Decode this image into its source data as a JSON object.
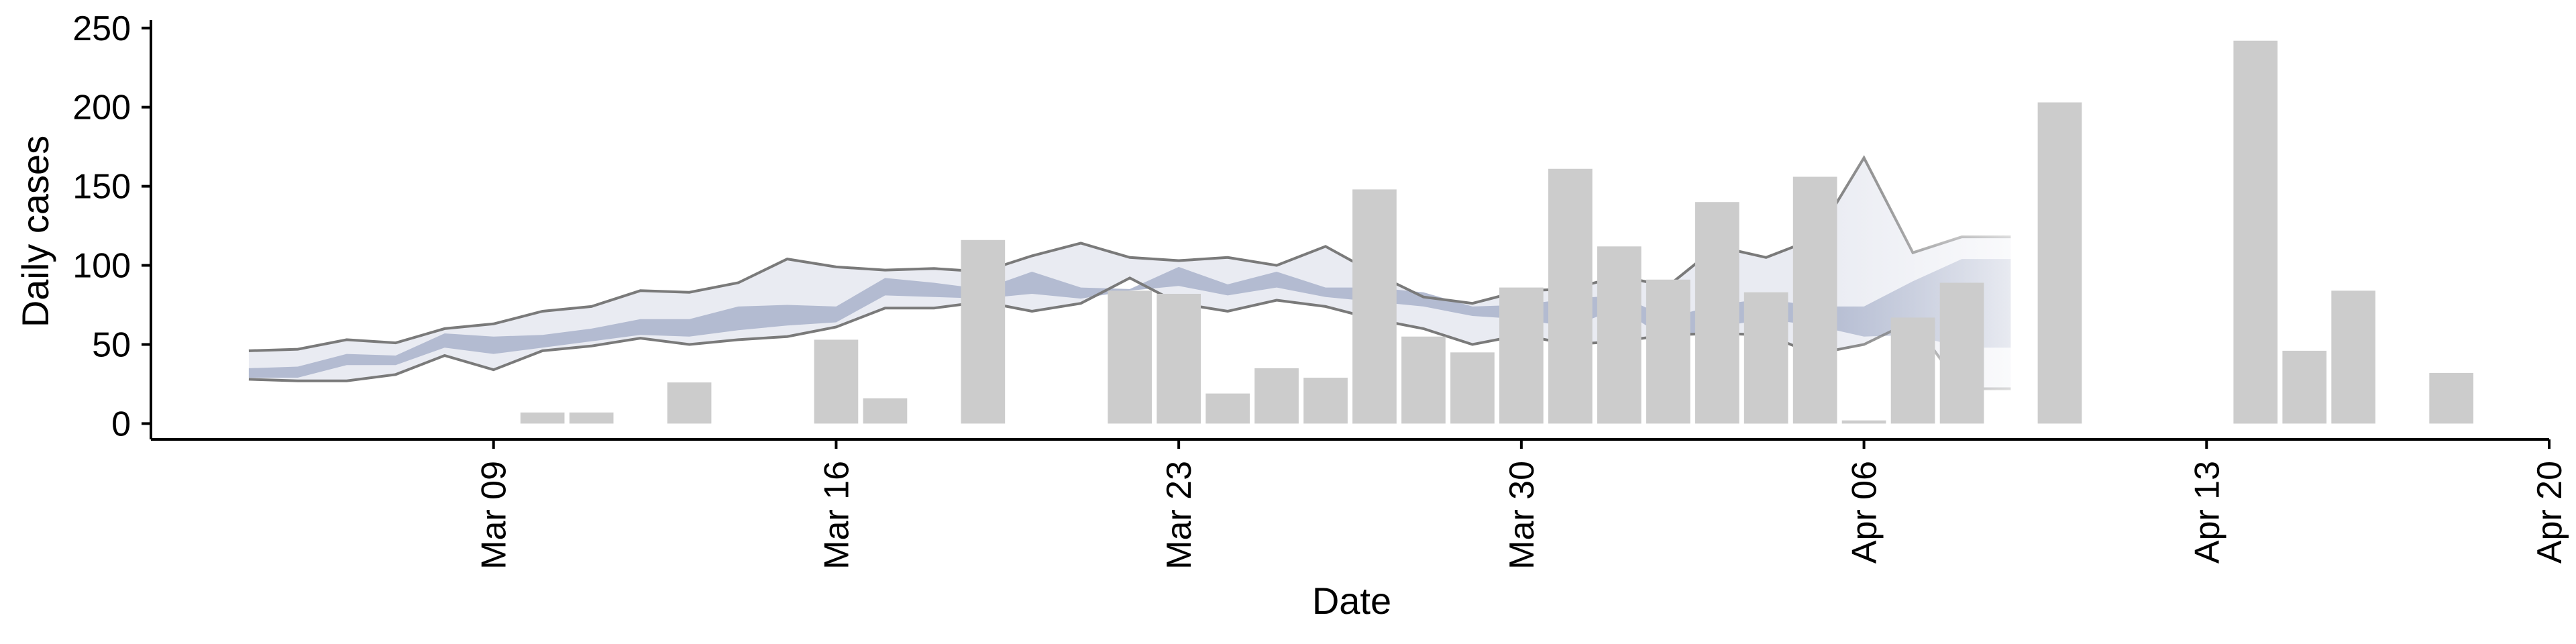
{
  "chart_data": {
    "type": "bar",
    "xlabel": "Date",
    "ylabel": "Daily cases",
    "x_tick_labels": [
      "Mar 09",
      "Mar 16",
      "Mar 23",
      "Mar 30",
      "Apr 06",
      "Apr 13",
      "Apr 20"
    ],
    "x_ticks": [
      "2020-03-09",
      "2020-03-16",
      "2020-03-23",
      "2020-03-30",
      "2020-04-06",
      "2020-04-13",
      "2020-04-20"
    ],
    "y_ticks": [
      0,
      50,
      100,
      150,
      200,
      250
    ],
    "ylim": [
      -10,
      255
    ],
    "xlim": [
      "2020-03-02",
      "2020-04-20"
    ],
    "grid": false,
    "colors": {
      "bars": "#cccccc",
      "median_band": "#b3bbd1",
      "outer_band": "#e9ebf2",
      "bound_lines": "#7a7a7a",
      "axis": "#000000"
    },
    "bars": [
      {
        "date": "2020-03-10",
        "value": 7
      },
      {
        "date": "2020-03-11",
        "value": 7
      },
      {
        "date": "2020-03-13",
        "value": 26
      },
      {
        "date": "2020-03-16",
        "value": 53
      },
      {
        "date": "2020-03-17",
        "value": 16
      },
      {
        "date": "2020-03-19",
        "value": 116
      },
      {
        "date": "2020-03-22",
        "value": 84
      },
      {
        "date": "2020-03-23",
        "value": 82
      },
      {
        "date": "2020-03-24",
        "value": 19
      },
      {
        "date": "2020-03-25",
        "value": 35
      },
      {
        "date": "2020-03-26",
        "value": 29
      },
      {
        "date": "2020-03-27",
        "value": 148
      },
      {
        "date": "2020-03-28",
        "value": 55
      },
      {
        "date": "2020-03-29",
        "value": 45
      },
      {
        "date": "2020-03-30",
        "value": 86
      },
      {
        "date": "2020-03-31",
        "value": 161
      },
      {
        "date": "2020-04-01",
        "value": 112
      },
      {
        "date": "2020-04-02",
        "value": 91
      },
      {
        "date": "2020-04-03",
        "value": 140
      },
      {
        "date": "2020-04-04",
        "value": 83
      },
      {
        "date": "2020-04-05",
        "value": 156
      },
      {
        "date": "2020-04-06",
        "value": 2
      },
      {
        "date": "2020-04-07",
        "value": 67
      },
      {
        "date": "2020-04-08",
        "value": 89
      },
      {
        "date": "2020-04-10",
        "value": 203
      },
      {
        "date": "2020-04-14",
        "value": 242
      },
      {
        "date": "2020-04-15",
        "value": 46
      },
      {
        "date": "2020-04-16",
        "value": 84
      },
      {
        "date": "2020-04-18",
        "value": 32
      }
    ],
    "forecast": {
      "dates": [
        "2020-03-04",
        "2020-03-05",
        "2020-03-06",
        "2020-03-07",
        "2020-03-08",
        "2020-03-09",
        "2020-03-10",
        "2020-03-11",
        "2020-03-12",
        "2020-03-13",
        "2020-03-14",
        "2020-03-15",
        "2020-03-16",
        "2020-03-17",
        "2020-03-18",
        "2020-03-19",
        "2020-03-20",
        "2020-03-21",
        "2020-03-22",
        "2020-03-23",
        "2020-03-24",
        "2020-03-25",
        "2020-03-26",
        "2020-03-27",
        "2020-03-28",
        "2020-03-29",
        "2020-03-30",
        "2020-03-31",
        "2020-04-01",
        "2020-04-02",
        "2020-04-03",
        "2020-04-04",
        "2020-04-05",
        "2020-04-06",
        "2020-04-07",
        "2020-04-08",
        "2020-04-09"
      ],
      "upper": [
        46,
        47,
        53,
        51,
        60,
        63,
        71,
        74,
        84,
        83,
        89,
        104,
        99,
        97,
        98,
        96,
        106,
        114,
        105,
        103,
        105,
        100,
        112,
        95,
        80,
        76,
        84,
        85,
        93,
        87,
        112,
        105,
        117,
        168,
        108,
        118,
        118
      ],
      "lower": [
        28,
        27,
        27,
        31,
        43,
        34,
        46,
        49,
        54,
        50,
        53,
        55,
        61,
        73,
        73,
        77,
        71,
        76,
        92,
        76,
        71,
        78,
        74,
        66,
        60,
        50,
        56,
        50,
        52,
        56,
        57,
        56,
        44,
        50,
        65,
        22,
        22
      ],
      "median_upper": [
        35,
        36,
        44,
        43,
        57,
        55,
        56,
        60,
        66,
        66,
        74,
        75,
        74,
        92,
        89,
        85,
        96,
        86,
        85,
        99,
        88,
        96,
        86,
        86,
        83,
        74,
        75,
        79,
        81,
        67,
        75,
        79,
        74,
        74,
        90,
        104,
        104
      ],
      "median_lower": [
        29,
        29,
        37,
        37,
        48,
        44,
        48,
        52,
        56,
        55,
        59,
        62,
        64,
        81,
        80,
        79,
        82,
        79,
        84,
        87,
        81,
        86,
        80,
        77,
        74,
        68,
        66,
        61,
        73,
        53,
        61,
        66,
        62,
        55,
        56,
        48,
        48
      ]
    }
  }
}
